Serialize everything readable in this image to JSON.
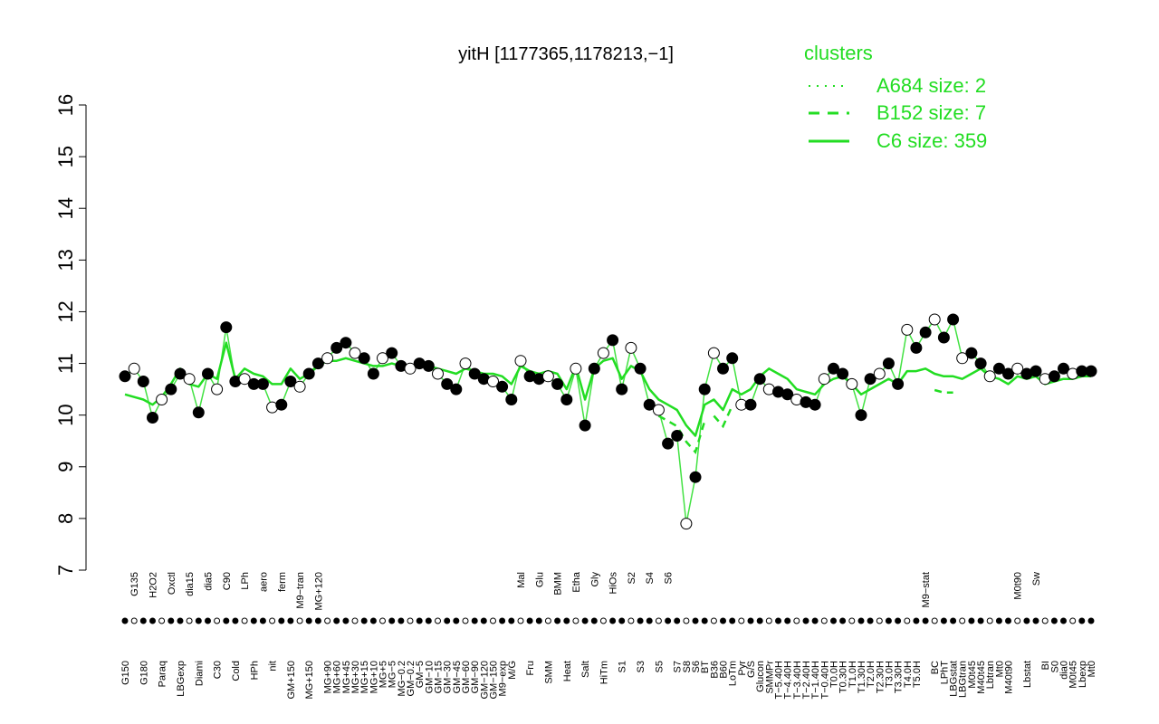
{
  "chart_data": {
    "type": "line",
    "title": "yitH [1177365,1178213,−1]",
    "xlabel": "",
    "ylabel": "",
    "ylim": [
      7,
      16
    ],
    "yticks": [
      "7",
      "8",
      "9",
      "10",
      "11",
      "12",
      "13",
      "14",
      "15",
      "16"
    ],
    "x_tick_labels": [
      "G150",
      "G135",
      "G180",
      "H2O2",
      "Paraq",
      "Oxctl",
      "LBGexp",
      "dia15",
      "Diami",
      "dia5",
      "C30",
      "C90",
      "Cold",
      "LPh",
      "HPh",
      "aero",
      "nit",
      "ferm",
      "GM+150",
      "M9−tran",
      "MG+150",
      "MG+120",
      "MG+90",
      "MG+60",
      "MG+45",
      "MG+30",
      "MG+15",
      "MG+10",
      "MG+5",
      "MG−5",
      "MG−0.2",
      "GM−0.2",
      "GM−5",
      "GM−10",
      "GM−15",
      "GM−30",
      "GM−45",
      "GM−60",
      "GM−90",
      "GM−120",
      "GM−150",
      "M9−exp",
      "M/G",
      "Mal",
      "Fru",
      "Glu",
      "SMM",
      "BMM",
      "Heat",
      "Etha",
      "Salt",
      "Gly",
      "HiTm",
      "HiOs",
      "S1",
      "S2",
      "S3",
      "S4",
      "S5",
      "S6",
      "S7",
      "S8",
      "S6",
      "BT",
      "B36",
      "B60",
      "LoTm",
      "Pyr",
      "G/S",
      "Glucon",
      "SMMPr",
      "T−5.40H",
      "T−4.40H",
      "T−3.40H",
      "T−2.40H",
      "T−1.40H",
      "T−0.40H",
      "T0.0H",
      "T0.30H",
      "T1.0H",
      "T1.30H",
      "T2.0H",
      "T2.30H",
      "T3.0H",
      "T3.30H",
      "T4.0H",
      "T5.0H",
      "M9−stat",
      "BC",
      "LPhT",
      "LBGstat",
      "LBGtran",
      "M0t45",
      "M40t45",
      "Lbtran",
      "Mt0",
      "M40t90",
      "M0t90",
      "Lbstat",
      "Sw",
      "BI",
      "S0",
      "dia0",
      "M0t45",
      "Lbexp",
      "Mt0"
    ],
    "x_label_positions_row_top": [
      "G135",
      "H2O2",
      "Oxctl",
      "dia15",
      "dia5",
      "C30",
      "C90",
      "LPh",
      "aero",
      "ferm",
      "M9−tran",
      "MG+120",
      "Mal",
      "Glu",
      "BMM",
      "Etha",
      "Gly",
      "HiOs",
      "S2",
      "S4",
      "S5",
      "S7",
      "S6",
      "B36",
      "LoTm",
      "G/S",
      "SMMPr",
      "M9−stat",
      "LBGstat",
      "M0t45",
      "Lbtran",
      "M0t90",
      "Sw",
      "BI",
      "M0t45",
      "Lbexp"
    ],
    "legend": {
      "title": "clusters",
      "position": "top-right",
      "entries": [
        {
          "label": "A684 size: 2",
          "style": "dotted"
        },
        {
          "label": "B152 size: 7",
          "style": "dashed"
        },
        {
          "label": "C6 size: 359",
          "style": "solid"
        }
      ]
    },
    "colors": {
      "line": "#22dd22",
      "legend": "#22dd22",
      "points": "#000000"
    },
    "series": [
      {
        "x": [
          0,
          1,
          2,
          3,
          4,
          5,
          6,
          7,
          8,
          9,
          10,
          11,
          12,
          13,
          14,
          15,
          16,
          17,
          18,
          19,
          20,
          21,
          22,
          23,
          24,
          25,
          26,
          27,
          28,
          29,
          30,
          31,
          32,
          33,
          34,
          35,
          36,
          37,
          38,
          39,
          40,
          41,
          42,
          43,
          44,
          45,
          46,
          47,
          48,
          49,
          50,
          51,
          52,
          53,
          54,
          55,
          56,
          57,
          58,
          59,
          60,
          61,
          62,
          63,
          64,
          65,
          66,
          67,
          68,
          69,
          70,
          71,
          72,
          73,
          74,
          75,
          76,
          77,
          78,
          79,
          80,
          81,
          82,
          83,
          84,
          85,
          86,
          87,
          88,
          89,
          90,
          91,
          92,
          93,
          94,
          95,
          96,
          97,
          98,
          99,
          100,
          101,
          102,
          103,
          104,
          105
        ],
        "values": [
          10.75,
          10.9,
          10.65,
          9.95,
          10.3,
          10.5,
          10.8,
          10.7,
          10.05,
          10.8,
          10.5,
          11.7,
          10.65,
          10.7,
          10.6,
          10.6,
          10.15,
          10.2,
          10.65,
          10.55,
          10.8,
          11.0,
          11.1,
          11.3,
          11.4,
          11.2,
          11.1,
          10.8,
          11.1,
          11.2,
          10.95,
          10.9,
          11.0,
          10.95,
          10.8,
          10.6,
          10.5,
          11.0,
          10.8,
          10.7,
          10.65,
          10.55,
          10.3,
          11.05,
          10.75,
          10.7,
          10.75,
          10.6,
          10.3,
          10.9,
          9.8,
          10.9,
          11.2,
          11.45,
          10.5,
          11.3,
          10.9,
          10.2,
          10.1,
          9.45,
          9.6,
          7.9,
          8.8,
          10.5,
          11.2,
          10.9,
          11.1,
          10.2,
          10.2,
          10.7,
          10.5,
          10.45,
          10.4,
          10.3,
          10.25,
          10.2,
          10.7,
          10.9,
          10.8,
          10.6,
          10.0,
          10.7,
          10.8,
          11.0,
          10.6,
          11.65,
          11.3,
          11.6,
          11.85,
          11.5,
          11.85,
          11.1,
          11.2,
          11.0,
          10.75,
          10.9,
          10.8,
          10.9,
          10.8,
          10.85,
          10.7,
          10.75,
          10.9,
          10.8,
          10.85,
          10.85
        ]
      },
      {
        "name": "C6 size: 359",
        "values": [
          10.4,
          10.35,
          10.3,
          10.2,
          10.35,
          10.6,
          10.9,
          10.6,
          10.55,
          10.8,
          10.7,
          11.4,
          10.7,
          10.9,
          10.8,
          10.75,
          10.6,
          10.6,
          10.9,
          10.7,
          10.8,
          10.95,
          11.05,
          11.05,
          11.1,
          11.05,
          11.0,
          10.95,
          10.95,
          11.0,
          10.95,
          10.9,
          10.95,
          10.95,
          10.9,
          10.85,
          10.8,
          10.9,
          10.85,
          10.8,
          10.8,
          10.75,
          10.6,
          10.95,
          10.85,
          10.8,
          10.85,
          10.8,
          10.5,
          10.95,
          10.3,
          10.9,
          11.05,
          11.1,
          10.7,
          10.95,
          10.85,
          10.5,
          10.3,
          10.2,
          10.1,
          9.8,
          9.6,
          10.2,
          10.3,
          10.1,
          10.5,
          10.4,
          10.5,
          10.75,
          10.9,
          10.8,
          10.7,
          10.5,
          10.45,
          10.4,
          10.6,
          10.7,
          10.75,
          10.6,
          10.4,
          10.5,
          10.6,
          10.7,
          10.6,
          10.85,
          10.85,
          10.9,
          10.8,
          10.75,
          10.75,
          10.7,
          10.8,
          10.9,
          10.75,
          10.7,
          10.6,
          10.75,
          10.7,
          10.75,
          10.6,
          10.65,
          10.7,
          10.7,
          10.75,
          10.75
        ]
      }
    ]
  }
}
